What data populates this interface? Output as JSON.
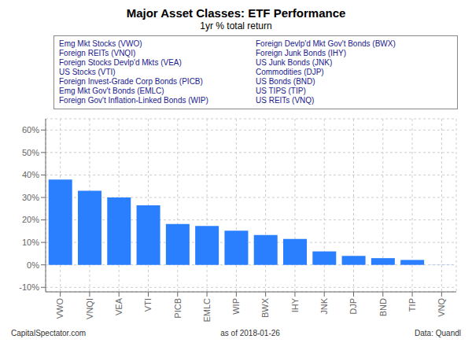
{
  "chart_data": {
    "type": "bar",
    "title": "Major Asset Classes: ETF Performance",
    "subtitle": "1yr % total return",
    "categories": [
      "VWO",
      "VNQI",
      "VEA",
      "VTI",
      "PICB",
      "EMLC",
      "WIP",
      "BWX",
      "IHY",
      "JNK",
      "DJP",
      "BND",
      "TIP",
      "VNQ"
    ],
    "values": [
      38.0,
      33.0,
      30.0,
      26.5,
      18.2,
      17.3,
      15.2,
      13.3,
      11.5,
      6.0,
      4.0,
      3.0,
      2.2,
      0.05
    ],
    "color": "#2a7fff",
    "ylim": [
      -12,
      65
    ],
    "yticks": [
      {
        "value": -10,
        "label": "-10%"
      },
      {
        "value": 0,
        "label": "0%"
      },
      {
        "value": 10,
        "label": "10%"
      },
      {
        "value": 20,
        "label": "20%"
      },
      {
        "value": 30,
        "label": "30%"
      },
      {
        "value": 40,
        "label": "40%"
      },
      {
        "value": 50,
        "label": "50%"
      },
      {
        "value": 60,
        "label": "60%"
      }
    ],
    "grid": true,
    "legend_columns": [
      [
        "Emg Mkt Stocks (VWO)",
        "Foreign REITs (VNQI)",
        "Foreign Stocks Devlp'd Mkts (VEA)",
        "US Stocks (VTI)",
        "Foreign Invest-Grade Corp Bonds (PICB)",
        "Emg Mkt Gov't Bonds (EMLC)",
        "Foreign Gov't Inflation-Linked Bonds (WIP)"
      ],
      [
        "Foreign Devlp'd Mkt Gov't Bonds (BWX)",
        "Foreign Junk Bonds (IHY)",
        "US Junk Bonds (JNK)",
        "Commodities (DJP)",
        "US Bonds (BND)",
        "US TIPS (TIP)",
        "US REITs (VNQ)"
      ]
    ],
    "legend_color": "#1a1a8c",
    "footer_left": "CapitalSpectator.com",
    "footer_center": "as of  2018-01-26",
    "footer_right": "Data: Quandl"
  }
}
